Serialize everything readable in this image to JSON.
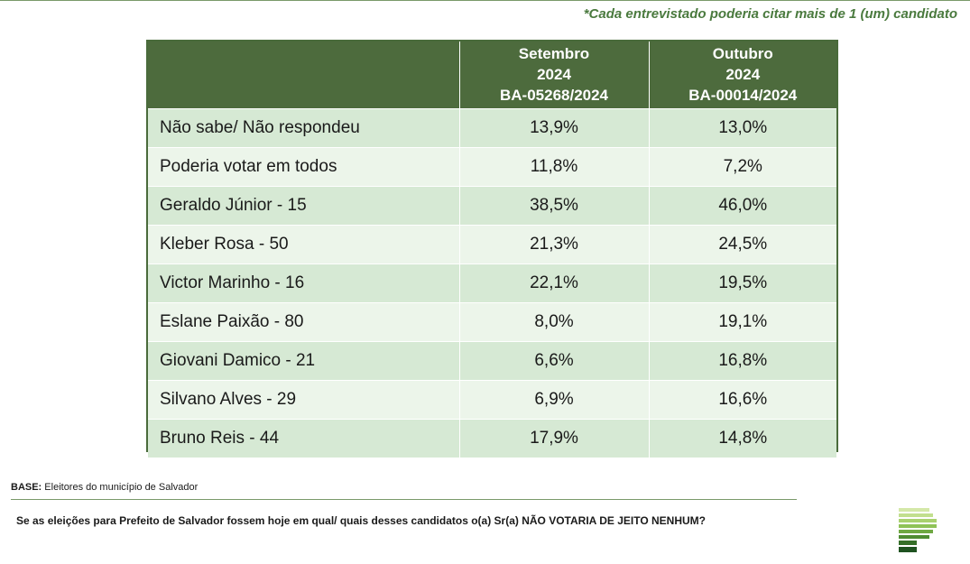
{
  "note": "*Cada entrevistado poderia citar mais de 1 (um) candidato",
  "table": {
    "headers": [
      {
        "label_lines": [
          "",
          "",
          ""
        ]
      },
      {
        "label_lines": [
          "Setembro",
          "2024",
          "BA-05268/2024"
        ]
      },
      {
        "label_lines": [
          "Outubro",
          "2024",
          "BA-00014/2024"
        ]
      }
    ],
    "rows": [
      {
        "name": "Não sabe/ Não respondeu",
        "setembro": "13,9%",
        "outubro": "13,0%"
      },
      {
        "name": "Poderia votar em todos",
        "setembro": "11,8%",
        "outubro": "7,2%"
      },
      {
        "name": "Geraldo Júnior - 15",
        "setembro": "38,5%",
        "outubro": "46,0%"
      },
      {
        "name": "Kleber Rosa - 50",
        "setembro": "21,3%",
        "outubro": "24,5%"
      },
      {
        "name": "Victor Marinho - 16",
        "setembro": "22,1%",
        "outubro": "19,5%"
      },
      {
        "name": "Eslane Paixão - 80",
        "setembro": "8,0%",
        "outubro": "19,1%"
      },
      {
        "name": "Giovani Damico - 21",
        "setembro": "6,6%",
        "outubro": "16,8%"
      },
      {
        "name": "Silvano Alves - 29",
        "setembro": "6,9%",
        "outubro": "16,6%"
      },
      {
        "name": "Bruno Reis - 44",
        "setembro": "17,9%",
        "outubro": "14,8%"
      }
    ]
  },
  "base": {
    "label": "BASE:",
    "text": " Eleitores do município de Salvador"
  },
  "question": "Se as eleições para Prefeito de Salvador fossem hoje em qual/ quais desses candidatos o(a) Sr(a) NÃO VOTARIA DE JEITO NENHUM?",
  "logo": {
    "icon": "stacked-bars-logo-icon",
    "colors": [
      "#d4e8a8",
      "#c2df8e",
      "#a9d16f",
      "#8fc257",
      "#6fa843",
      "#4f8c33",
      "#356f28",
      "#1f5220"
    ]
  }
}
